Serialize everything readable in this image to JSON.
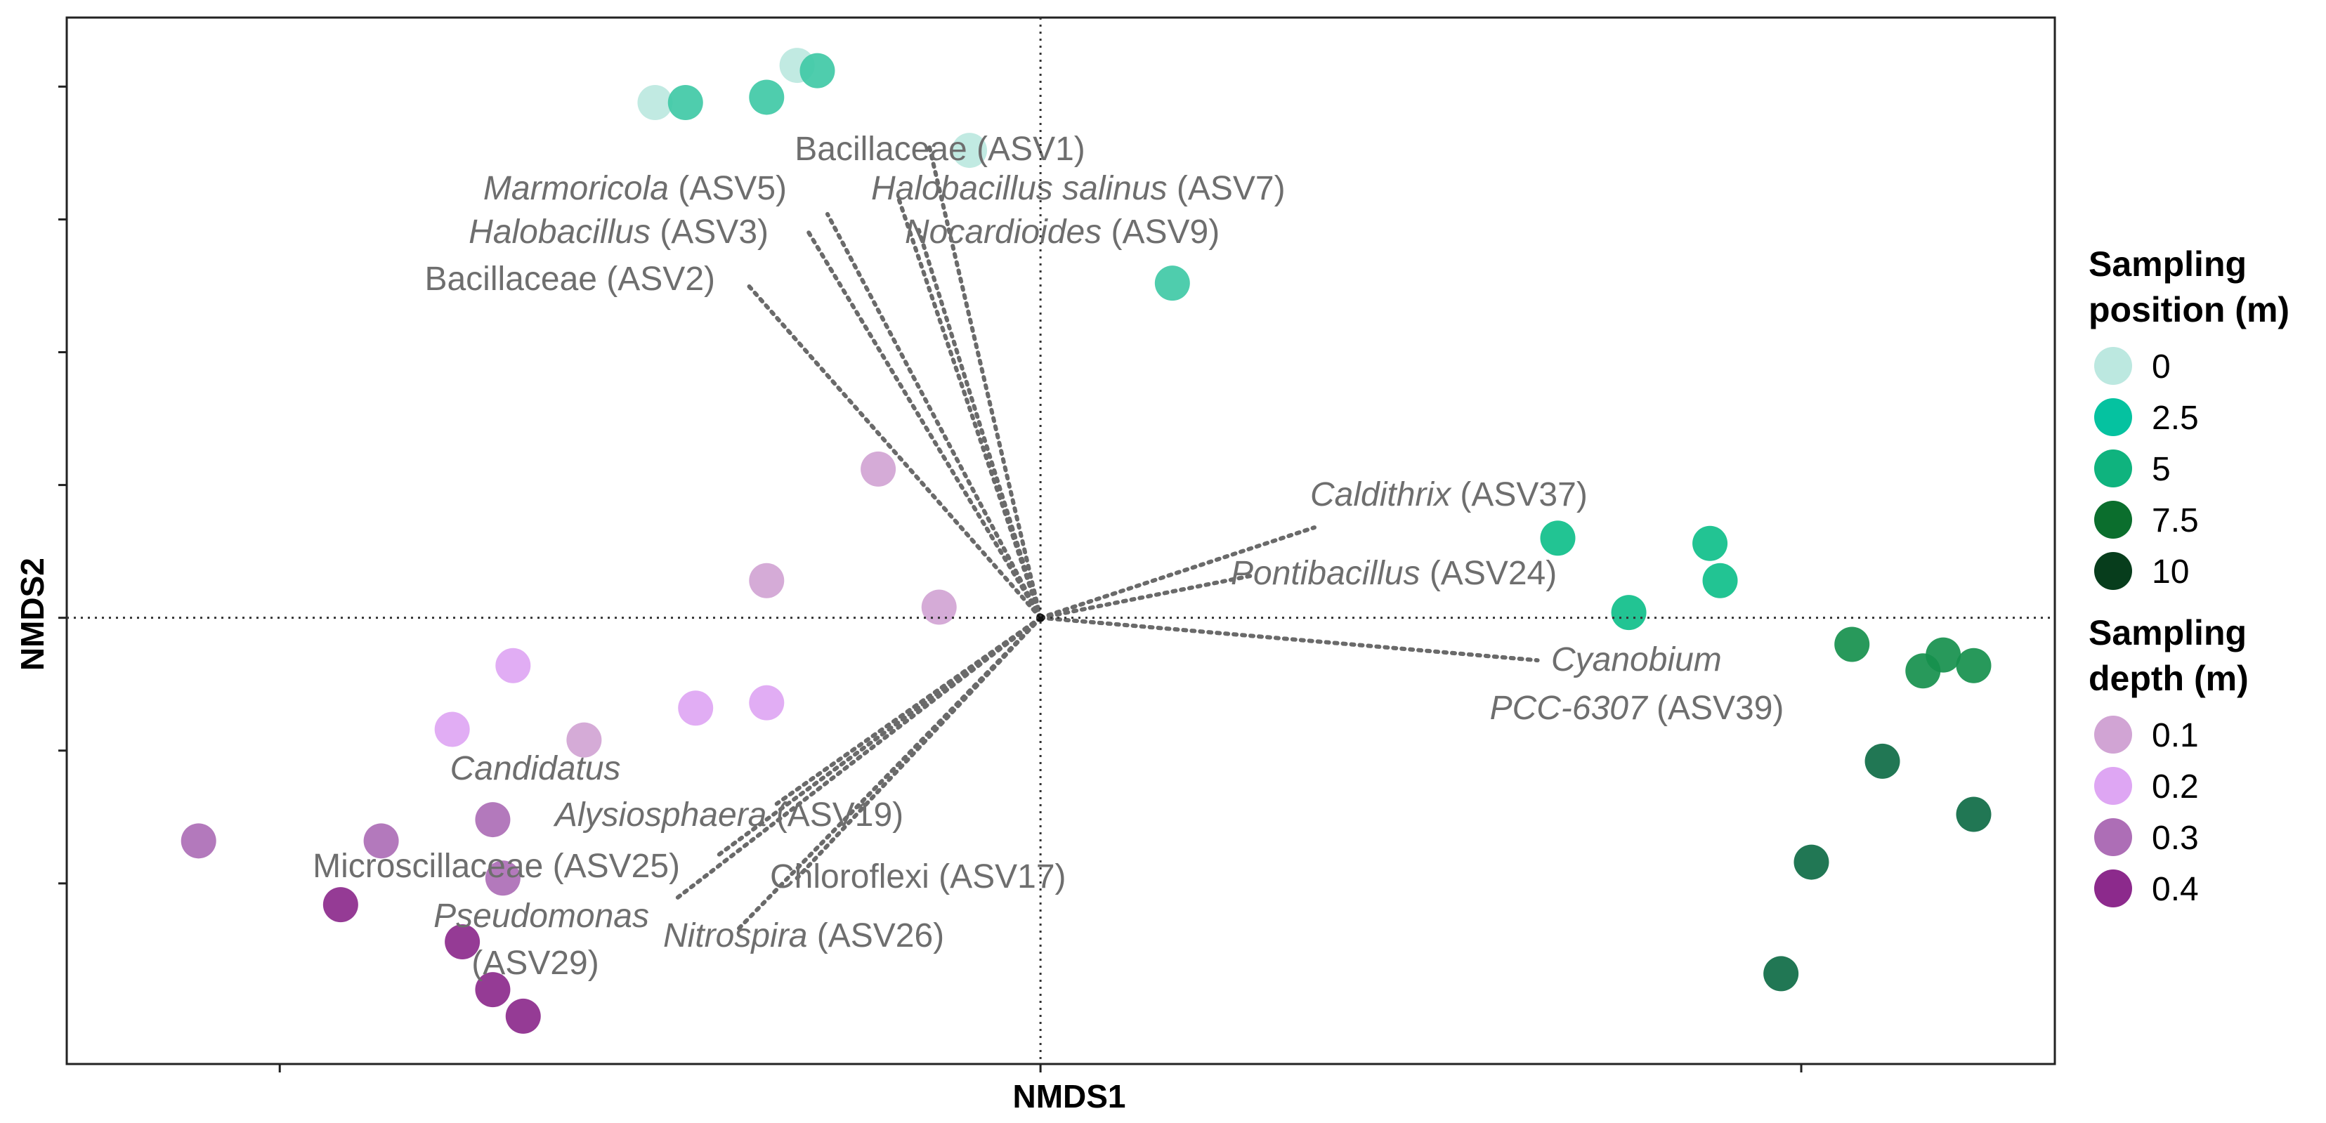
{
  "chart_data": {
    "type": "scatter",
    "title": "",
    "xlabel": "NMDS1",
    "ylabel": "NMDS2",
    "xlim": [
      -0.96,
      1.0
    ],
    "ylim": [
      -0.84,
      1.13
    ],
    "reference_lines": {
      "x": 0,
      "y": 0
    },
    "legend": {
      "placement": "right",
      "groups": [
        {
          "title": [
            "Sampling",
            "position (m)"
          ],
          "items": [
            {
              "label": "0",
              "color": "#bce8e0"
            },
            {
              "label": "2.5",
              "color": "#05c2a0"
            },
            {
              "label": "5",
              "color": "#0fb37e"
            },
            {
              "label": "7.5",
              "color": "#0b6e2d"
            },
            {
              "label": "10",
              "color": "#073d1c"
            }
          ]
        },
        {
          "title": [
            "Sampling",
            "depth (m)"
          ],
          "items": [
            {
              "label": "0.1",
              "color": "#d1a4d4"
            },
            {
              "label": "0.2",
              "color": "#dea6f3"
            },
            {
              "label": "0.3",
              "color": "#ad6eb6"
            },
            {
              "label": "0.4",
              "color": "#8c2a8c"
            }
          ]
        }
      ]
    },
    "series": [
      {
        "group": "Sampling position (m)",
        "name": "0",
        "color": "#bce8e0",
        "points": [
          [
            -0.38,
            0.97
          ],
          [
            -0.24,
            1.04
          ],
          [
            -0.07,
            0.88
          ]
        ]
      },
      {
        "group": "Sampling position (m)",
        "name": "2.5",
        "color": "#40c9a6",
        "points": [
          [
            -0.35,
            0.97
          ],
          [
            -0.27,
            0.98
          ],
          [
            -0.22,
            1.03
          ],
          [
            0.13,
            0.63
          ]
        ]
      },
      {
        "group": "Sampling position (m)",
        "name": "5",
        "color": "#0fbf8a",
        "points": [
          [
            0.51,
            0.15
          ],
          [
            0.58,
            0.01
          ],
          [
            0.67,
            0.07
          ],
          [
            0.66,
            0.14
          ]
        ]
      },
      {
        "group": "Sampling position (m)",
        "name": "7.5",
        "color": "#16904d",
        "points": [
          [
            0.8,
            -0.05
          ],
          [
            0.87,
            -0.1
          ],
          [
            0.89,
            -0.07
          ],
          [
            0.92,
            -0.09
          ]
        ]
      },
      {
        "group": "Sampling position (m)",
        "name": "10",
        "color": "#0e6b45",
        "points": [
          [
            0.83,
            -0.27
          ],
          [
            0.92,
            -0.37
          ],
          [
            0.76,
            -0.46
          ],
          [
            0.73,
            -0.67
          ]
        ]
      },
      {
        "group": "Sampling depth (m)",
        "name": "0.1",
        "color": "#d1a4d4",
        "points": [
          [
            -0.16,
            0.28
          ],
          [
            -0.27,
            0.07
          ],
          [
            -0.1,
            0.02
          ],
          [
            -0.45,
            -0.23
          ]
        ]
      },
      {
        "group": "Sampling depth (m)",
        "name": "0.2",
        "color": "#dea6f3",
        "points": [
          [
            -0.52,
            -0.09
          ],
          [
            -0.58,
            -0.21
          ],
          [
            -0.34,
            -0.17
          ],
          [
            -0.27,
            -0.16
          ]
        ]
      },
      {
        "group": "Sampling depth (m)",
        "name": "0.3",
        "color": "#ad6eb6",
        "points": [
          [
            -0.83,
            -0.42
          ],
          [
            -0.65,
            -0.42
          ],
          [
            -0.54,
            -0.38
          ],
          [
            -0.53,
            -0.49
          ]
        ]
      },
      {
        "group": "Sampling depth (m)",
        "name": "0.4",
        "color": "#8c2a8c",
        "points": [
          [
            -0.69,
            -0.54
          ],
          [
            -0.57,
            -0.61
          ],
          [
            -0.54,
            -0.7
          ],
          [
            -0.51,
            -0.75
          ]
        ]
      }
    ],
    "vectors": [
      {
        "parts": [
          {
            "text": "Bacillaceae (ASV1)",
            "italic": false
          }
        ],
        "end": [
          -0.11,
          0.89
        ],
        "anchor": "middle",
        "line": 0
      },
      {
        "parts": [
          {
            "text": "Marmoricola",
            "italic": true
          },
          {
            "text": " (ASV5)",
            "italic": false
          }
        ],
        "end": [
          -0.21,
          0.76
        ],
        "anchor": "end",
        "line": 0
      },
      {
        "parts": [
          {
            "text": "Halobacillus salinus",
            "italic": true
          },
          {
            "text": " (ASV7)",
            "italic": false
          }
        ],
        "end": [
          -0.14,
          0.79
        ],
        "anchor": "start",
        "line": 0
      },
      {
        "parts": [
          {
            "text": "Halobacillus",
            "italic": true
          },
          {
            "text": " (ASV3)",
            "italic": false
          }
        ],
        "end": [
          -0.23,
          0.73
        ],
        "anchor": "end",
        "line": 0
      },
      {
        "parts": [
          {
            "text": "Nocardioides",
            "italic": true
          },
          {
            "text": " (ASV9)",
            "italic": false
          }
        ],
        "end": [
          -0.12,
          0.73
        ],
        "anchor": "start",
        "line": 0
      },
      {
        "parts": [
          {
            "text": "Bacillaceae (ASV2)",
            "italic": false
          }
        ],
        "end": [
          -0.29,
          0.63
        ],
        "anchor": "end",
        "line": 0
      },
      {
        "parts": [
          {
            "text": "Caldithrix",
            "italic": true
          },
          {
            "text": " (ASV37)",
            "italic": false
          }
        ],
        "end": [
          0.27,
          0.17
        ],
        "anchor": "start",
        "line": 0
      },
      {
        "parts": [
          {
            "text": "Pontibacillus",
            "italic": true
          },
          {
            "text": " (ASV24)",
            "italic": false
          }
        ],
        "end": [
          0.21,
          0.08
        ],
        "anchor": "start",
        "line": 0
      },
      {
        "parts": [
          {
            "text": "Cyanobium",
            "italic": true
          }
        ],
        "end": [
          0.49,
          -0.08
        ],
        "anchor": "start",
        "line": 0
      },
      {
        "parts": [
          {
            "text": "PCC-6307",
            "italic": true
          },
          {
            "text": " (ASV39)",
            "italic": false
          }
        ],
        "end": null,
        "anchor": "middle",
        "line": 1
      },
      {
        "parts": [
          {
            "text": "Candidatus",
            "italic": true
          }
        ],
        "end": null,
        "anchor": "middle",
        "line": 0
      },
      {
        "parts": [
          {
            "text": "Alysiosphaera",
            "italic": true
          },
          {
            "text": " (ASV19)",
            "italic": false
          }
        ],
        "end": [
          -0.26,
          -0.35
        ],
        "anchor": "middle",
        "line": 1
      },
      {
        "parts": [
          {
            "text": "Microscillaceae (ASV25)",
            "italic": false
          }
        ],
        "end": [
          -0.32,
          -0.45
        ],
        "anchor": "end",
        "line": 0
      },
      {
        "parts": [
          {
            "text": "Chloroflexi (ASV17)",
            "italic": false
          }
        ],
        "end": [
          -0.24,
          -0.49
        ],
        "anchor": "start",
        "line": 0
      },
      {
        "parts": [
          {
            "text": "Pseudomonas",
            "italic": true
          }
        ],
        "end": [
          -0.36,
          -0.53
        ],
        "anchor": "end",
        "line": 0
      },
      {
        "parts": [
          {
            "text": "(ASV29)",
            "italic": false
          }
        ],
        "end": null,
        "anchor": "middle",
        "line": 1
      },
      {
        "parts": [
          {
            "text": "Nitrospira",
            "italic": true
          },
          {
            "text": " (ASV26)",
            "italic": false
          }
        ],
        "end": [
          -0.3,
          -0.59
        ],
        "anchor": "start",
        "line": 0
      }
    ]
  }
}
